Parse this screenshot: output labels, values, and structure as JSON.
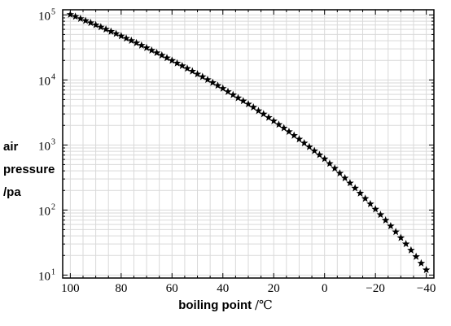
{
  "chart_data": {
    "type": "scatter",
    "marker": "star",
    "marker_color": "#000000",
    "xlabel": "boiling point",
    "xlabel_unit": "/℃",
    "ylabel": [
      "air",
      "pressure",
      "/pa"
    ],
    "x_reversed": true,
    "xlim": [
      103,
      -43
    ],
    "y_scale": "log",
    "ylim": [
      9,
      120000
    ],
    "x_ticks": [
      100,
      80,
      60,
      40,
      20,
      0,
      -20,
      -40
    ],
    "x_tick_labels": [
      "100",
      "80",
      "60",
      "40",
      "20",
      "0",
      "−20",
      "−40"
    ],
    "y_ticks": [
      10,
      100,
      1000,
      10000,
      100000
    ],
    "y_tick_base": "10",
    "y_tick_exponents": [
      "1",
      "2",
      "3",
      "4",
      "5"
    ],
    "grid": true,
    "grid_color": "#d9d9d9",
    "x": [
      100,
      98,
      96,
      94,
      92,
      90,
      88,
      86,
      84,
      82,
      80,
      78,
      76,
      74,
      72,
      70,
      68,
      66,
      64,
      62,
      60,
      58,
      56,
      54,
      52,
      50,
      48,
      46,
      44,
      42,
      40,
      38,
      36,
      34,
      32,
      30,
      28,
      26,
      24,
      22,
      20,
      18,
      16,
      14,
      12,
      10,
      8,
      6,
      4,
      2,
      0,
      -2,
      -4,
      -6,
      -8,
      -10,
      -12,
      -14,
      -16,
      -18,
      -20,
      -22,
      -24,
      -26,
      -28,
      -30,
      -32,
      -34,
      -36,
      -38,
      -40
    ],
    "y": [
      101325,
      94300,
      87700,
      81500,
      75600,
      70100,
      65000,
      60100,
      55600,
      51400,
      47400,
      43600,
      40200,
      37000,
      34000,
      31200,
      28500,
      26100,
      23900,
      21800,
      19900,
      18100,
      16500,
      15000,
      13600,
      12300,
      11200,
      10100,
      9100,
      8200,
      7400,
      6600,
      5900,
      5300,
      4750,
      4250,
      3800,
      3350,
      2990,
      2640,
      2340,
      2060,
      1820,
      1600,
      1400,
      1230,
      1070,
      935,
      813,
      705,
      611,
      517,
      437,
      368,
      310,
      260,
      217,
      181,
      150,
      124,
      103,
      84.7,
      69.5,
      56.8,
      46.2,
      37.4,
      30.1,
      24.1,
      19.2,
      15.2,
      12
    ]
  }
}
